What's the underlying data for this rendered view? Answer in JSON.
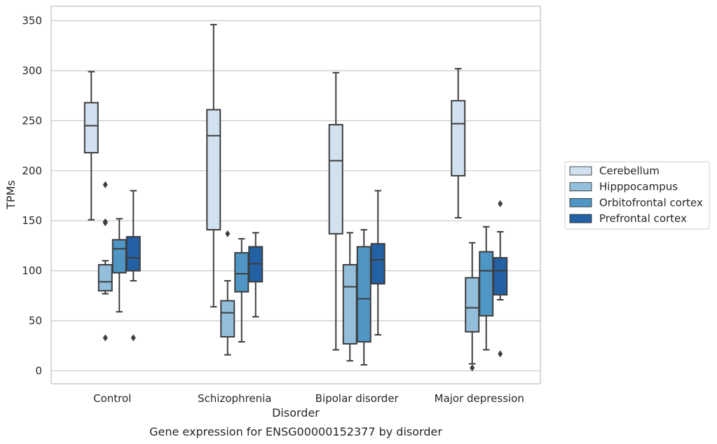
{
  "caption": "Gene expression for ENSG00000152377 by disorder",
  "chart_data": {
    "type": "boxplot",
    "title": "",
    "xlabel": "Disorder",
    "ylabel": "TPMs",
    "ylim": [
      -13,
      364
    ],
    "yticks": [
      0,
      50,
      100,
      150,
      200,
      250,
      300,
      350
    ],
    "grid": "horizontal",
    "legend_position": "right",
    "categories": [
      "Control",
      "Schizophrenia",
      "Bipolar disorder",
      "Major depression"
    ],
    "series": [
      {
        "name": "Cerebellum",
        "color": "#d1e1f0",
        "boxes": [
          {
            "whisker_low": 151,
            "q1": 218,
            "median": 245,
            "q3": 268,
            "whisker_high": 299,
            "outliers": []
          },
          {
            "whisker_low": 64,
            "q1": 141,
            "median": 235,
            "q3": 261,
            "whisker_high": 346,
            "outliers": []
          },
          {
            "whisker_low": 21,
            "q1": 137,
            "median": 210,
            "q3": 246,
            "whisker_high": 298,
            "outliers": []
          },
          {
            "whisker_low": 153,
            "q1": 195,
            "median": 247,
            "q3": 270,
            "whisker_high": 302,
            "outliers": []
          }
        ]
      },
      {
        "name": "Hipppocampus",
        "color": "#93bfdc",
        "boxes": [
          {
            "whisker_low": 77,
            "q1": 80,
            "median": 89,
            "q3": 106,
            "whisker_high": 110,
            "outliers": [
              186,
              149,
              148,
              33
            ]
          },
          {
            "whisker_low": 16,
            "q1": 34,
            "median": 58,
            "q3": 70,
            "whisker_high": 90,
            "outliers": [
              137
            ]
          },
          {
            "whisker_low": 10,
            "q1": 27,
            "median": 84,
            "q3": 106,
            "whisker_high": 138,
            "outliers": []
          },
          {
            "whisker_low": 7,
            "q1": 39,
            "median": 63,
            "q3": 93,
            "whisker_high": 128,
            "outliers": [
              3
            ]
          }
        ]
      },
      {
        "name": "Orbitofrontal cortex",
        "color": "#5096c5",
        "boxes": [
          {
            "whisker_low": 59,
            "q1": 98,
            "median": 122,
            "q3": 131,
            "whisker_high": 152,
            "outliers": []
          },
          {
            "whisker_low": 29,
            "q1": 79,
            "median": 97,
            "q3": 118,
            "whisker_high": 132,
            "outliers": []
          },
          {
            "whisker_low": 6,
            "q1": 29,
            "median": 72,
            "q3": 124,
            "whisker_high": 141,
            "outliers": []
          },
          {
            "whisker_low": 21,
            "q1": 55,
            "median": 100,
            "q3": 119,
            "whisker_high": 144,
            "outliers": []
          }
        ]
      },
      {
        "name": "Prefrontal cortex",
        "color": "#2361a4",
        "boxes": [
          {
            "whisker_low": 90,
            "q1": 100,
            "median": 113,
            "q3": 134,
            "whisker_high": 180,
            "outliers": [
              33
            ]
          },
          {
            "whisker_low": 54,
            "q1": 89,
            "median": 107,
            "q3": 124,
            "whisker_high": 138,
            "outliers": []
          },
          {
            "whisker_low": 36,
            "q1": 87,
            "median": 111,
            "q3": 127,
            "whisker_high": 180,
            "outliers": []
          },
          {
            "whisker_low": 71,
            "q1": 76,
            "median": 100,
            "q3": 113,
            "whisker_high": 139,
            "outliers": [
              167,
              17
            ]
          }
        ]
      }
    ]
  }
}
